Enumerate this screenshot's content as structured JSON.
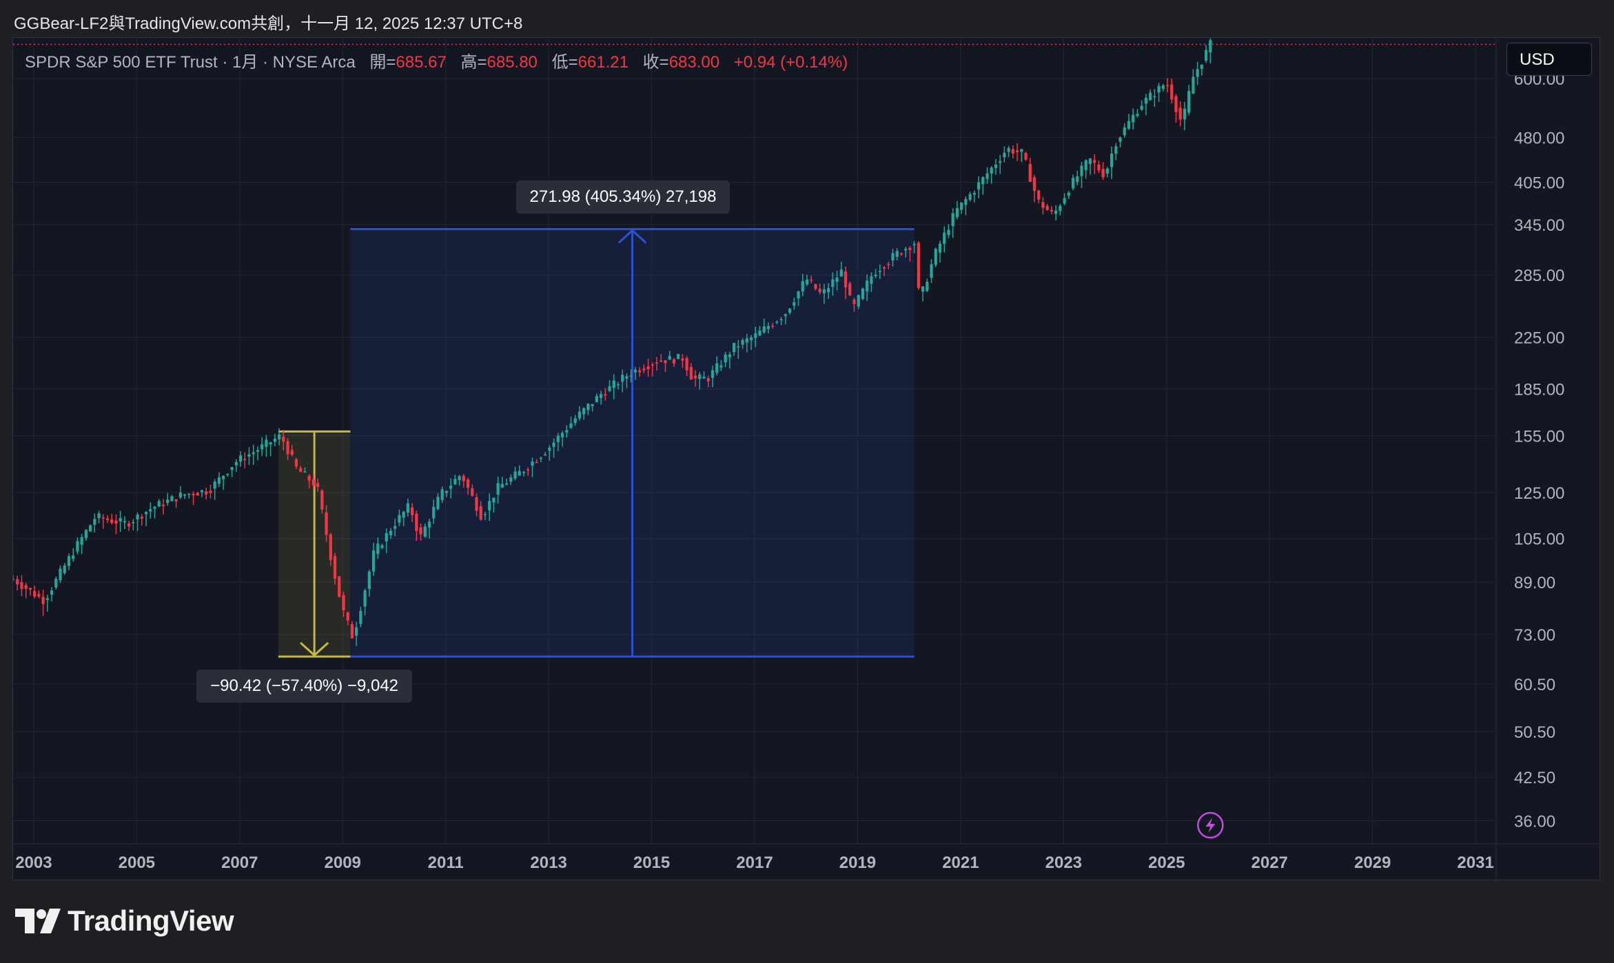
{
  "attribution": "GGBear-LF2與TradingView.com共創，十一月 12, 2025 12:37 UTC+8",
  "legend": {
    "symbol": "SPDR S&P 500 ETF Trust · 1月 · NYSE Arca",
    "open_label": "開=",
    "open": "685.67",
    "high_label": "高=",
    "high": "685.80",
    "low_label": "低=",
    "low": "661.21",
    "close_label": "收=",
    "close": "683.00",
    "change": "+0.94 (+0.14%)"
  },
  "currency": "USD",
  "logo_text": "TradingView",
  "colors": {
    "up": "#26a69a",
    "down": "#f23645",
    "blue_measure": "#2f4fd0",
    "yellow_measure": "#c9b740",
    "background": "#141722",
    "alert_icon": "#c44ce0"
  },
  "icons": {
    "alert": "lightning-icon",
    "logo": "tradingview-logo-icon"
  },
  "chart_data": {
    "type": "candlestick",
    "title": "SPDR S&P 500 ETF Trust · 1月 · NYSE Arca",
    "y_scale": "log",
    "ylim": [
      33,
      700
    ],
    "xlim": [
      2002.6,
      2031.4
    ],
    "x_ticks": [
      "2003",
      "2005",
      "2007",
      "2009",
      "2011",
      "2013",
      "2015",
      "2017",
      "2019",
      "2021",
      "2023",
      "2025",
      "2027",
      "2029",
      "2031"
    ],
    "y_ticks": [
      "600.00",
      "480.00",
      "405.00",
      "345.00",
      "285.00",
      "225.00",
      "185.00",
      "155.00",
      "125.00",
      "105.00",
      "89.00",
      "73.00",
      "60.50",
      "50.50",
      "42.50",
      "36.00"
    ],
    "grid": true,
    "series": [
      {
        "points": [
          [
            2002.6,
            90
          ],
          [
            2003.2,
            83
          ],
          [
            2003.8,
            101
          ],
          [
            2004.2,
            114
          ],
          [
            2004.8,
            111
          ],
          [
            2005.3,
            118
          ],
          [
            2005.9,
            124
          ],
          [
            2006.4,
            126
          ],
          [
            2006.9,
            140
          ],
          [
            2007.4,
            148
          ],
          [
            2007.8,
            155
          ],
          [
            2008.1,
            137
          ],
          [
            2008.5,
            128
          ],
          [
            2008.8,
            95
          ],
          [
            2009.0,
            80
          ],
          [
            2009.2,
            72
          ],
          [
            2009.6,
            99
          ],
          [
            2010.0,
            111
          ],
          [
            2010.3,
            119
          ],
          [
            2010.5,
            105
          ],
          [
            2010.9,
            124
          ],
          [
            2011.3,
            134
          ],
          [
            2011.7,
            114
          ],
          [
            2012.0,
            127
          ],
          [
            2012.5,
            136
          ],
          [
            2013.0,
            148
          ],
          [
            2013.5,
            165
          ],
          [
            2014.0,
            181
          ],
          [
            2014.6,
            197
          ],
          [
            2015.1,
            206
          ],
          [
            2015.6,
            208
          ],
          [
            2015.8,
            192
          ],
          [
            2016.1,
            193
          ],
          [
            2016.6,
            217
          ],
          [
            2017.0,
            226
          ],
          [
            2017.6,
            247
          ],
          [
            2018.0,
            281
          ],
          [
            2018.3,
            264
          ],
          [
            2018.7,
            290
          ],
          [
            2018.9,
            250
          ],
          [
            2019.3,
            287
          ],
          [
            2019.8,
            311
          ],
          [
            2020.1,
            322
          ],
          [
            2020.2,
            258
          ],
          [
            2020.5,
            308
          ],
          [
            2020.9,
            362
          ],
          [
            2021.3,
            397
          ],
          [
            2021.9,
            460
          ],
          [
            2022.2,
            452
          ],
          [
            2022.5,
            377
          ],
          [
            2022.8,
            357
          ],
          [
            2023.1,
            396
          ],
          [
            2023.5,
            442
          ],
          [
            2023.8,
            416
          ],
          [
            2024.0,
            470
          ],
          [
            2024.5,
            544
          ],
          [
            2025.0,
            592
          ],
          [
            2025.3,
            505
          ],
          [
            2025.5,
            600
          ],
          [
            2025.85,
            683
          ]
        ]
      }
    ],
    "annotations": [
      {
        "text": "271.98 (405.34%) 27,198",
        "from": [
          2009.15,
          67.1
        ],
        "to": [
          2020.1,
          339.1
        ],
        "color": "#2f4fd0"
      },
      {
        "text": "−90.42 (−57.40%) −9,042",
        "from": [
          2007.75,
          157.5
        ],
        "to": [
          2009.15,
          67.1
        ],
        "color": "#c9b740"
      }
    ]
  }
}
